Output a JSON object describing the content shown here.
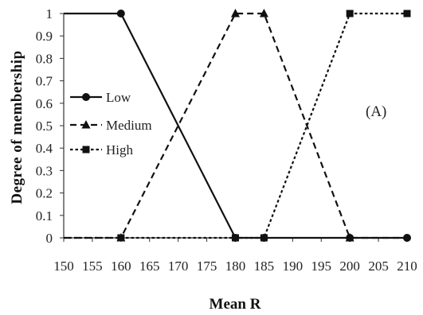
{
  "chart_data": {
    "type": "line",
    "title": "",
    "xlabel": "Mean R",
    "ylabel": "Degree of membership",
    "annotation": "(A)",
    "xlim": [
      150,
      210
    ],
    "ylim": [
      0,
      1
    ],
    "x_ticks": [
      150,
      155,
      160,
      165,
      170,
      175,
      180,
      185,
      190,
      195,
      200,
      205,
      210
    ],
    "y_ticks": [
      0,
      0.1,
      0.2,
      0.3,
      0.4,
      0.5,
      0.6,
      0.7,
      0.8,
      0.9,
      1
    ],
    "grid": false,
    "legend_position": "left",
    "series": [
      {
        "name": "Low",
        "marker": "circle",
        "dash": "solid",
        "points": [
          [
            150,
            1
          ],
          [
            160,
            1
          ],
          [
            180,
            0
          ],
          [
            210,
            0
          ]
        ],
        "marker_points": [
          [
            160,
            1
          ],
          [
            180,
            0
          ],
          [
            185,
            0
          ],
          [
            200,
            0
          ],
          [
            210,
            0
          ]
        ]
      },
      {
        "name": "Medium",
        "marker": "triangle",
        "dash": "dashed",
        "points": [
          [
            150,
            0
          ],
          [
            160,
            0
          ],
          [
            180,
            1
          ],
          [
            185,
            1
          ],
          [
            200,
            0
          ],
          [
            210,
            0
          ]
        ],
        "marker_points": [
          [
            160,
            0
          ],
          [
            180,
            1
          ],
          [
            185,
            1
          ],
          [
            200,
            0
          ]
        ]
      },
      {
        "name": "High",
        "marker": "square",
        "dash": "dotted",
        "points": [
          [
            150,
            0
          ],
          [
            185,
            0
          ],
          [
            200,
            1
          ],
          [
            210,
            1
          ]
        ],
        "marker_points": [
          [
            160,
            0
          ],
          [
            180,
            0
          ],
          [
            185,
            0
          ],
          [
            200,
            1
          ],
          [
            210,
            1
          ]
        ]
      }
    ],
    "colors": {
      "line": "#111111"
    }
  }
}
